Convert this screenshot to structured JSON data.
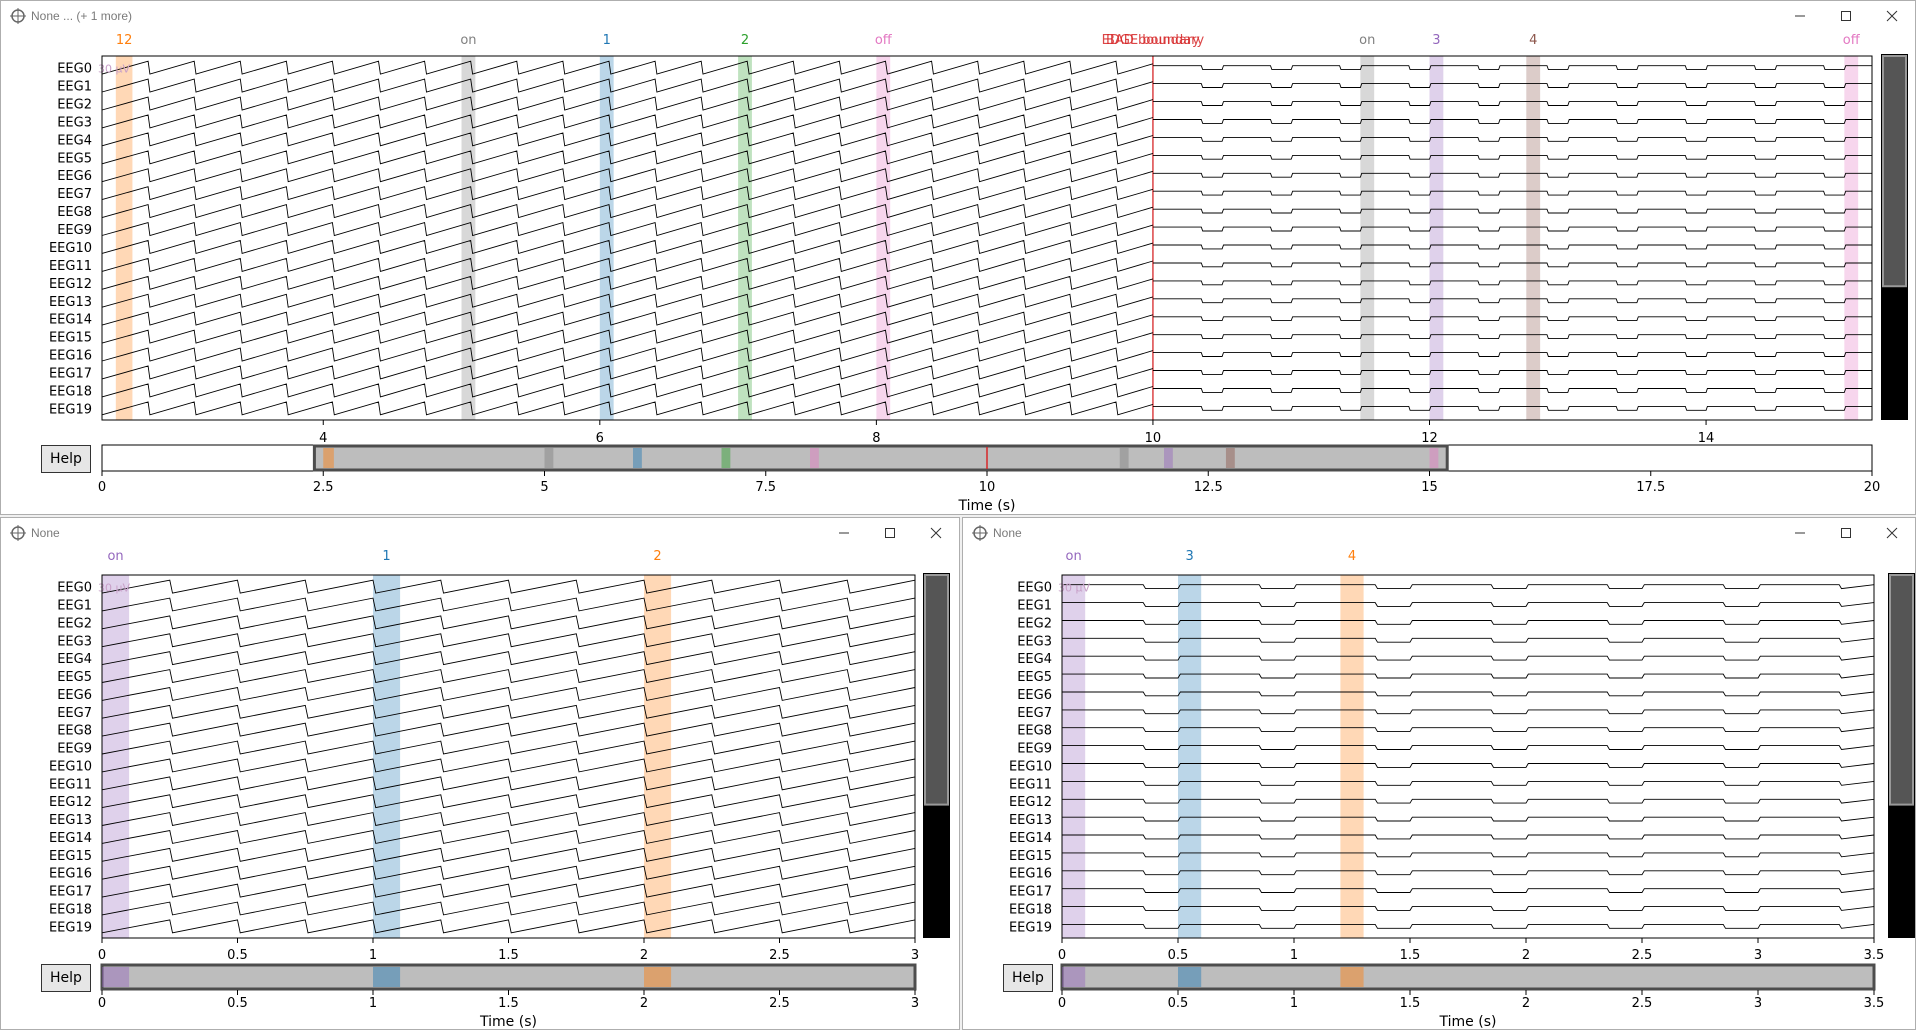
{
  "windows": [
    {
      "id": "top",
      "title": "None ... (+ 1 more)",
      "help_label": "Help",
      "xlabel": "Time (s)",
      "channels": [
        "EEG0",
        "EEG1",
        "EEG2",
        "EEG3",
        "EEG4",
        "EEG5",
        "EEG6",
        "EEG7",
        "EEG8",
        "EEG9",
        "EEG10",
        "EEG11",
        "EEG12",
        "EEG13",
        "EEG14",
        "EEG15",
        "EEG16",
        "EEG17",
        "EEG18",
        "EEG19"
      ],
      "scale_label": "30 µV",
      "view_start": 2.4,
      "view_end": 15.2,
      "view_ticks": [
        4,
        6,
        8,
        10,
        12,
        14
      ],
      "overview_ticks": [
        0,
        2.5,
        5,
        7.5,
        10,
        12.5,
        15,
        17.5,
        20
      ],
      "overview_range": [
        0,
        20
      ],
      "annotations": [
        {
          "label": "12",
          "onset": 2.5,
          "duration": 0.12,
          "color": "#ff7f0e"
        },
        {
          "label": "on",
          "onset": 5.0,
          "duration": 0.1,
          "color": "#7f7f7f"
        },
        {
          "label": "1",
          "onset": 6.0,
          "duration": 0.1,
          "color": "#1f77b4"
        },
        {
          "label": "2",
          "onset": 7.0,
          "duration": 0.1,
          "color": "#2ca02c"
        },
        {
          "label": "off",
          "onset": 8.0,
          "duration": 0.1,
          "color": "#e377c2"
        },
        {
          "label": "on",
          "onset": 11.5,
          "duration": 0.1,
          "color": "#7f7f7f"
        },
        {
          "label": "3",
          "onset": 12.0,
          "duration": 0.1,
          "color": "#9467bd"
        },
        {
          "label": "4",
          "onset": 12.7,
          "duration": 0.1,
          "color": "#8c564b"
        },
        {
          "label": "off",
          "onset": 15.0,
          "duration": 0.1,
          "color": "#e377c2"
        }
      ],
      "boundary": {
        "label": "BAD boundary",
        "label2": "EDGE boundary",
        "time": 10.0,
        "color": "#d62728"
      },
      "signal_segments": [
        {
          "kind": "saw",
          "start": 2.4,
          "end": 10.0,
          "period": 0.3333
        },
        {
          "kind": "square",
          "start": 10.0,
          "end": 15.2,
          "period": 0.5
        }
      ],
      "scroll_thumb": [
        0.0,
        0.64
      ]
    },
    {
      "id": "bl",
      "title": "None",
      "help_label": "Help",
      "xlabel": "Time (s)",
      "channels": [
        "EEG0",
        "EEG1",
        "EEG2",
        "EEG3",
        "EEG4",
        "EEG5",
        "EEG6",
        "EEG7",
        "EEG8",
        "EEG9",
        "EEG10",
        "EEG11",
        "EEG12",
        "EEG13",
        "EEG14",
        "EEG15",
        "EEG16",
        "EEG17",
        "EEG18",
        "EEG19"
      ],
      "scale_label": "30 µV",
      "view_start": 0,
      "view_end": 3,
      "view_ticks": [
        0,
        0.5,
        1,
        1.5,
        2,
        2.5,
        3
      ],
      "overview_ticks": [
        0,
        0.5,
        1,
        1.5,
        2,
        2.5,
        3
      ],
      "overview_range": [
        0,
        3
      ],
      "annotations": [
        {
          "label": "on",
          "onset": 0.0,
          "duration": 0.1,
          "color": "#9467bd"
        },
        {
          "label": "1",
          "onset": 1.0,
          "duration": 0.1,
          "color": "#1f77b4"
        },
        {
          "label": "2",
          "onset": 2.0,
          "duration": 0.1,
          "color": "#ff7f0e"
        }
      ],
      "signal_segments": [
        {
          "kind": "saw",
          "start": 0,
          "end": 3,
          "period": 0.25
        }
      ],
      "scroll_thumb": [
        0.0,
        0.64
      ]
    },
    {
      "id": "br",
      "title": "None",
      "help_label": "Help",
      "xlabel": "Time (s)",
      "channels": [
        "EEG0",
        "EEG1",
        "EEG2",
        "EEG3",
        "EEG4",
        "EEG5",
        "EEG6",
        "EEG7",
        "EEG8",
        "EEG9",
        "EEG10",
        "EEG11",
        "EEG12",
        "EEG13",
        "EEG14",
        "EEG15",
        "EEG16",
        "EEG17",
        "EEG18",
        "EEG19"
      ],
      "scale_label": "30 µV",
      "view_start": 0,
      "view_end": 3.5,
      "view_ticks": [
        0,
        0.5,
        1,
        1.5,
        2,
        2.5,
        3,
        3.5
      ],
      "overview_ticks": [
        0,
        0.5,
        1,
        1.5,
        2,
        2.5,
        3,
        3.5
      ],
      "overview_range": [
        0,
        3.5
      ],
      "annotations": [
        {
          "label": "on",
          "onset": 0.0,
          "duration": 0.1,
          "color": "#9467bd"
        },
        {
          "label": "3",
          "onset": 0.5,
          "duration": 0.1,
          "color": "#1f77b4"
        },
        {
          "label": "4",
          "onset": 1.2,
          "duration": 0.1,
          "color": "#ff7f0e"
        }
      ],
      "signal_segments": [
        {
          "kind": "square",
          "start": 0,
          "end": 3.5,
          "period": 0.5
        }
      ],
      "scroll_thumb": [
        0.0,
        0.64
      ]
    }
  ]
}
